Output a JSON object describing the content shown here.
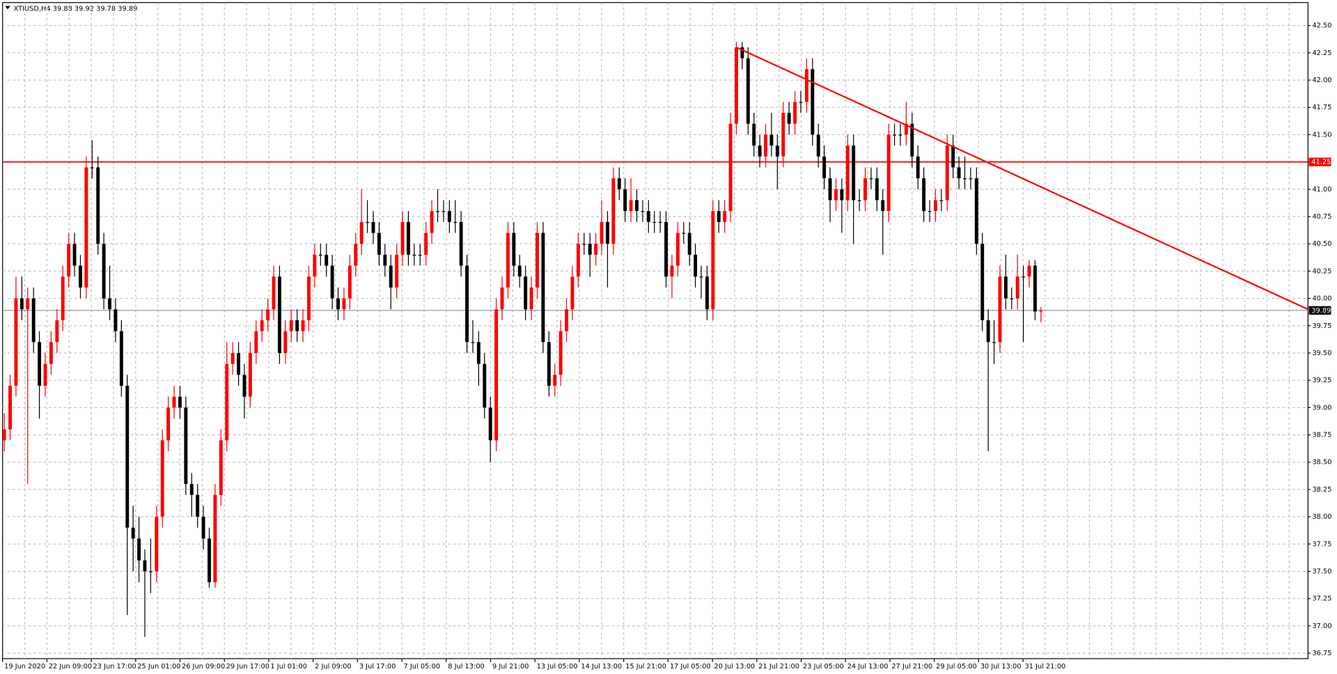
{
  "chart_data": {
    "type": "candlestick",
    "title": "XTIUSD,H4 39.88 39.92 39.78 39.89",
    "bull_color": "#ff0000",
    "bear_color": "#000000",
    "grid": true,
    "ylim": [
      36.7,
      42.71
    ],
    "yticks": [
      {
        "value": 42.5,
        "label": "42.50"
      },
      42.25,
      {
        "value": 42,
        "label": "42.00"
      },
      41.75,
      {
        "value": 41.5,
        "label": "41.50"
      },
      41.25,
      {
        "value": 41,
        "label": "41.00"
      },
      40.75,
      {
        "value": 40.5,
        "label": "40.50"
      },
      40.25,
      {
        "value": 40,
        "label": "40.00"
      },
      39.75,
      {
        "value": 39.5,
        "label": "39.50"
      },
      39.25,
      {
        "value": 39,
        "label": "39.00"
      },
      38.75,
      {
        "value": 38.5,
        "label": "38.50"
      },
      38.25,
      {
        "value": 38,
        "label": "38.00"
      },
      37.75,
      {
        "value": 37.5,
        "label": "37.50"
      },
      37.25,
      {
        "value": 37,
        "label": "37.00"
      },
      36.75
    ],
    "x_labels": [
      "19 Jun 2020",
      "22 Jun 09:00",
      "23 Jun 17:00",
      "25 Jun 01:00",
      "26 Jun 09:00",
      "29 Jun 17:00",
      "1 Jul 01:00",
      "2 Jul 09:00",
      "3 Jul 17:00",
      "7 Jul 05:00",
      "8 Jul 13:00",
      "9 Jul 21:00",
      "13 Jul 05:00",
      "14 Jul 13:00",
      "15 Jul 21:00",
      "17 Jul 05:00",
      "20 Jul 13:00",
      "21 Jul 21:00",
      "23 Jul 05:00",
      "24 Jul 13:00",
      "27 Jul 21:00",
      "29 Jul 05:00",
      "30 Jul 13:00",
      "31 Jul 21:00"
    ],
    "hlines": [
      {
        "value": 41.25,
        "color": "#ff0000"
      }
    ],
    "current_price": {
      "value": 39.89,
      "color": "#7f8fa6"
    },
    "trendline": {
      "color": "#ff0000",
      "start": 42.3,
      "end": 39.9
    },
    "ohlc": [
      [
        38.7,
        38.95,
        38.6,
        38.8
      ],
      [
        38.8,
        39.3,
        38.7,
        39.2
      ],
      [
        39.2,
        40.2,
        39.1,
        40.0
      ],
      [
        40.0,
        40.2,
        39.8,
        39.9
      ],
      [
        39.9,
        40.1,
        38.3,
        40.0
      ],
      [
        40.0,
        40.1,
        39.5,
        39.6
      ],
      [
        39.6,
        39.7,
        38.9,
        39.2
      ],
      [
        39.2,
        39.5,
        39.1,
        39.4
      ],
      [
        39.4,
        39.7,
        39.3,
        39.6
      ],
      [
        39.6,
        39.9,
        39.5,
        39.8
      ],
      [
        39.8,
        40.3,
        39.7,
        40.2
      ],
      [
        40.2,
        40.6,
        40.1,
        40.5
      ],
      [
        40.5,
        40.6,
        40.2,
        40.3
      ],
      [
        40.3,
        40.4,
        40.0,
        40.1
      ],
      [
        40.1,
        41.3,
        40.0,
        41.2
      ],
      [
        41.2,
        41.45,
        41.1,
        41.2
      ],
      [
        41.2,
        41.3,
        40.4,
        40.5
      ],
      [
        40.5,
        40.6,
        39.9,
        40.0
      ],
      [
        40.0,
        40.3,
        39.8,
        39.9
      ],
      [
        39.9,
        40.0,
        39.6,
        39.7
      ],
      [
        39.7,
        39.8,
        39.1,
        39.2
      ],
      [
        39.2,
        39.3,
        37.1,
        37.9
      ],
      [
        37.9,
        38.1,
        37.5,
        37.8
      ],
      [
        37.8,
        38.0,
        37.4,
        37.6
      ],
      [
        37.6,
        37.7,
        36.9,
        37.5
      ],
      [
        37.5,
        37.8,
        37.3,
        37.5
      ],
      [
        37.5,
        38.1,
        37.4,
        38.0
      ],
      [
        38.0,
        38.8,
        37.9,
        38.7
      ],
      [
        38.7,
        39.1,
        38.6,
        39.0
      ],
      [
        39.0,
        39.2,
        38.9,
        39.1
      ],
      [
        39.1,
        39.2,
        38.9,
        39.0
      ],
      [
        39.0,
        39.1,
        38.2,
        38.3
      ],
      [
        38.3,
        38.4,
        38.0,
        38.2
      ],
      [
        38.2,
        38.3,
        37.9,
        38.0
      ],
      [
        38.0,
        38.1,
        37.7,
        37.8
      ],
      [
        37.8,
        37.9,
        37.35,
        37.4
      ],
      [
        37.4,
        38.3,
        37.35,
        38.2
      ],
      [
        38.2,
        38.8,
        38.1,
        38.7
      ],
      [
        38.7,
        39.6,
        38.6,
        39.4
      ],
      [
        39.4,
        39.6,
        39.3,
        39.5
      ],
      [
        39.5,
        39.6,
        39.2,
        39.3
      ],
      [
        39.3,
        39.4,
        38.9,
        39.1
      ],
      [
        39.1,
        39.6,
        39.0,
        39.5
      ],
      [
        39.5,
        39.8,
        39.4,
        39.7
      ],
      [
        39.7,
        39.9,
        39.6,
        39.8
      ],
      [
        39.8,
        40.0,
        39.7,
        39.9
      ],
      [
        39.9,
        40.3,
        39.8,
        40.2
      ],
      [
        40.2,
        40.3,
        39.4,
        39.5
      ],
      [
        39.5,
        39.8,
        39.4,
        39.7
      ],
      [
        39.7,
        39.9,
        39.6,
        39.8
      ],
      [
        39.8,
        39.9,
        39.6,
        39.7
      ],
      [
        39.7,
        39.9,
        39.6,
        39.8
      ],
      [
        39.8,
        40.3,
        39.7,
        40.2
      ],
      [
        40.2,
        40.5,
        40.1,
        40.4
      ],
      [
        40.4,
        40.5,
        40.3,
        40.4
      ],
      [
        40.4,
        40.5,
        40.2,
        40.3
      ],
      [
        40.3,
        40.4,
        39.9,
        40.0
      ],
      [
        40.0,
        40.1,
        39.8,
        39.9
      ],
      [
        39.9,
        40.1,
        39.8,
        40.0
      ],
      [
        40.0,
        40.4,
        39.9,
        40.3
      ],
      [
        40.3,
        40.6,
        40.2,
        40.5
      ],
      [
        40.5,
        41.0,
        40.4,
        40.7
      ],
      [
        40.7,
        40.9,
        40.6,
        40.7
      ],
      [
        40.7,
        40.8,
        40.5,
        40.6
      ],
      [
        40.6,
        40.7,
        40.3,
        40.4
      ],
      [
        40.4,
        40.5,
        40.2,
        40.3
      ],
      [
        40.3,
        40.4,
        39.9,
        40.1
      ],
      [
        40.1,
        40.5,
        40.0,
        40.4
      ],
      [
        40.4,
        40.8,
        40.3,
        40.7
      ],
      [
        40.7,
        40.8,
        40.3,
        40.4
      ],
      [
        40.4,
        40.5,
        40.3,
        40.4
      ],
      [
        40.4,
        40.5,
        40.3,
        40.4
      ],
      [
        40.4,
        40.7,
        40.3,
        40.6
      ],
      [
        40.6,
        40.9,
        40.5,
        40.8
      ],
      [
        40.8,
        41.0,
        40.7,
        40.8
      ],
      [
        40.8,
        40.9,
        40.7,
        40.8
      ],
      [
        40.8,
        40.9,
        40.6,
        40.7
      ],
      [
        40.7,
        40.9,
        40.6,
        40.7
      ],
      [
        40.7,
        40.8,
        40.2,
        40.3
      ],
      [
        40.3,
        40.4,
        39.5,
        39.6
      ],
      [
        39.6,
        39.8,
        39.5,
        39.6
      ],
      [
        39.6,
        39.7,
        39.2,
        39.4
      ],
      [
        39.4,
        39.5,
        38.9,
        39.0
      ],
      [
        39.0,
        39.1,
        38.5,
        38.7
      ],
      [
        38.7,
        40.0,
        38.6,
        39.9
      ],
      [
        39.9,
        40.2,
        39.8,
        40.1
      ],
      [
        40.1,
        40.7,
        40.0,
        40.6
      ],
      [
        40.6,
        40.7,
        40.2,
        40.3
      ],
      [
        40.3,
        40.4,
        40.1,
        40.2
      ],
      [
        40.2,
        40.3,
        39.8,
        39.9
      ],
      [
        39.9,
        40.2,
        39.8,
        40.1
      ],
      [
        40.1,
        40.7,
        40.0,
        40.6
      ],
      [
        40.6,
        40.7,
        39.5,
        39.6
      ],
      [
        39.6,
        39.7,
        39.1,
        39.2
      ],
      [
        39.2,
        39.4,
        39.1,
        39.3
      ],
      [
        39.3,
        39.8,
        39.2,
        39.7
      ],
      [
        39.7,
        40.0,
        39.6,
        39.9
      ],
      [
        39.9,
        40.3,
        39.8,
        40.2
      ],
      [
        40.2,
        40.6,
        40.1,
        40.5
      ],
      [
        40.5,
        40.6,
        40.4,
        40.5
      ],
      [
        40.5,
        40.6,
        40.2,
        40.4
      ],
      [
        40.4,
        40.6,
        40.3,
        40.5
      ],
      [
        40.5,
        40.9,
        40.4,
        40.7
      ],
      [
        40.7,
        40.8,
        40.1,
        40.5
      ],
      [
        40.5,
        41.2,
        40.4,
        41.1
      ],
      [
        41.1,
        41.2,
        40.9,
        41.0
      ],
      [
        41.0,
        41.1,
        40.7,
        40.8
      ],
      [
        40.8,
        41.1,
        40.7,
        40.9
      ],
      [
        40.9,
        41.0,
        40.7,
        40.8
      ],
      [
        40.8,
        40.9,
        40.7,
        40.8
      ],
      [
        40.8,
        40.9,
        40.6,
        40.7
      ],
      [
        40.7,
        40.8,
        40.6,
        40.7
      ],
      [
        40.7,
        40.8,
        40.6,
        40.7
      ],
      [
        40.7,
        40.8,
        40.1,
        40.2
      ],
      [
        40.2,
        40.4,
        40.0,
        40.3
      ],
      [
        40.3,
        40.7,
        40.2,
        40.6
      ],
      [
        40.6,
        40.7,
        40.5,
        40.6
      ],
      [
        40.6,
        40.7,
        40.3,
        40.4
      ],
      [
        40.4,
        40.5,
        40.1,
        40.2
      ],
      [
        40.2,
        40.3,
        40.0,
        40.2
      ],
      [
        40.2,
        40.3,
        39.8,
        39.9
      ],
      [
        39.9,
        40.9,
        39.8,
        40.8
      ],
      [
        40.8,
        40.9,
        40.6,
        40.7
      ],
      [
        40.7,
        40.9,
        40.6,
        40.8
      ],
      [
        40.8,
        41.7,
        40.7,
        41.6
      ],
      [
        41.6,
        42.35,
        41.5,
        42.3
      ],
      [
        42.3,
        42.35,
        42.1,
        42.2
      ],
      [
        42.2,
        42.3,
        41.5,
        41.6
      ],
      [
        41.6,
        41.7,
        41.3,
        41.4
      ],
      [
        41.4,
        41.5,
        41.2,
        41.3
      ],
      [
        41.3,
        41.6,
        41.2,
        41.5
      ],
      [
        41.5,
        41.7,
        41.3,
        41.4
      ],
      [
        41.4,
        41.5,
        41.0,
        41.3
      ],
      [
        41.3,
        41.8,
        41.2,
        41.7
      ],
      [
        41.7,
        41.8,
        41.5,
        41.6
      ],
      [
        41.6,
        41.9,
        41.5,
        41.8
      ],
      [
        41.8,
        41.9,
        41.7,
        41.8
      ],
      [
        41.8,
        42.2,
        41.7,
        42.1
      ],
      [
        42.1,
        42.2,
        41.4,
        41.5
      ],
      [
        41.5,
        41.6,
        41.2,
        41.3
      ],
      [
        41.3,
        41.4,
        41.0,
        41.1
      ],
      [
        41.1,
        41.2,
        40.7,
        40.9
      ],
      [
        40.9,
        41.1,
        40.8,
        41.0
      ],
      [
        41.0,
        41.1,
        40.6,
        40.9
      ],
      [
        40.9,
        41.5,
        40.8,
        41.4
      ],
      [
        41.4,
        41.5,
        40.5,
        40.9
      ],
      [
        40.9,
        41.0,
        40.8,
        40.9
      ],
      [
        40.9,
        41.2,
        40.8,
        41.1
      ],
      [
        41.1,
        41.2,
        41.0,
        41.1
      ],
      [
        41.1,
        41.2,
        40.8,
        40.9
      ],
      [
        40.9,
        41.0,
        40.4,
        40.8
      ],
      [
        40.8,
        41.6,
        40.7,
        41.5
      ],
      [
        41.5,
        41.6,
        41.4,
        41.5
      ],
      [
        41.5,
        41.6,
        41.4,
        41.5
      ],
      [
        41.5,
        41.8,
        41.4,
        41.6
      ],
      [
        41.6,
        41.7,
        41.2,
        41.3
      ],
      [
        41.3,
        41.4,
        41.0,
        41.1
      ],
      [
        41.1,
        41.2,
        40.7,
        40.8
      ],
      [
        40.8,
        40.9,
        40.7,
        40.8
      ],
      [
        40.8,
        41.0,
        40.7,
        40.9
      ],
      [
        40.9,
        41.0,
        40.8,
        40.9
      ],
      [
        40.9,
        41.5,
        40.8,
        41.4
      ],
      [
        41.4,
        41.5,
        41.1,
        41.2
      ],
      [
        41.2,
        41.3,
        41.0,
        41.1
      ],
      [
        41.1,
        41.3,
        41.0,
        41.1
      ],
      [
        41.1,
        41.2,
        41.0,
        41.1
      ],
      [
        41.1,
        41.2,
        40.4,
        40.5
      ],
      [
        40.5,
        40.6,
        39.7,
        39.8
      ],
      [
        39.8,
        39.9,
        38.6,
        39.6
      ],
      [
        39.6,
        39.8,
        39.4,
        39.6
      ],
      [
        39.6,
        40.3,
        39.5,
        40.2
      ],
      [
        40.2,
        40.4,
        39.9,
        40.0
      ],
      [
        40.0,
        40.1,
        39.9,
        40.0
      ],
      [
        40.0,
        40.4,
        39.9,
        40.2
      ],
      [
        40.2,
        40.3,
        39.6,
        40.2
      ],
      [
        40.2,
        40.35,
        40.1,
        40.3
      ],
      [
        40.3,
        40.35,
        39.8,
        39.88
      ],
      [
        39.88,
        39.92,
        39.78,
        39.89
      ]
    ]
  }
}
